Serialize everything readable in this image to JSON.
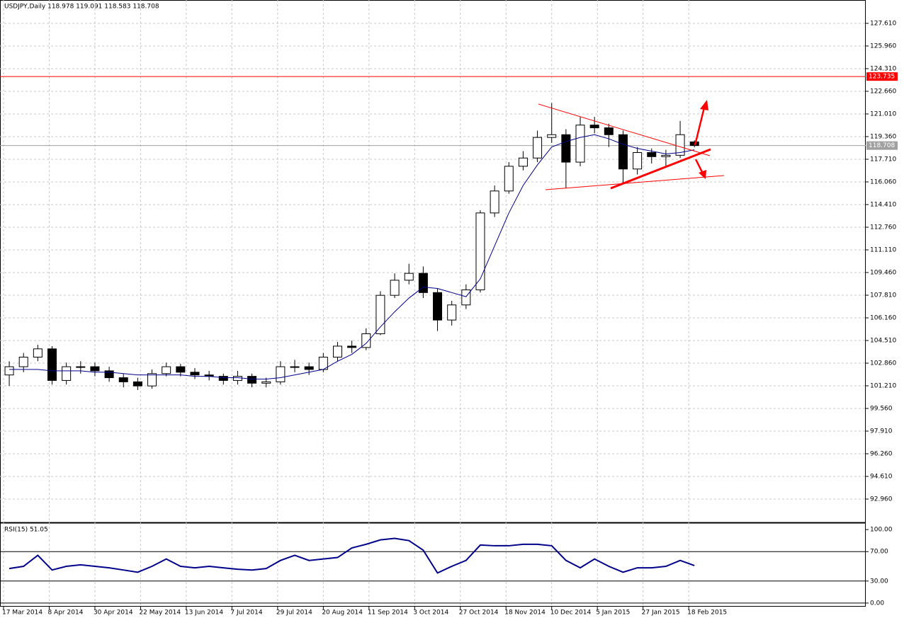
{
  "chart_data": {
    "type": "candlestick",
    "title": "USDJPY,Daily  118.978 119.091 118.583 118.708",
    "x": [
      2,
      7,
      12,
      17,
      22,
      27,
      32,
      37,
      42,
      47,
      52,
      57,
      62,
      67,
      72,
      77,
      82,
      87,
      92,
      97,
      102,
      107,
      112,
      117,
      122,
      127,
      132,
      137,
      142,
      147,
      152,
      157,
      162,
      167,
      172,
      177,
      182,
      187,
      192,
      197,
      202,
      207,
      212,
      217,
      222,
      227,
      232,
      237,
      242
    ],
    "open": [
      102.0,
      102.6,
      103.3,
      103.9,
      101.6,
      102.6,
      102.6,
      102.3,
      101.8,
      101.5,
      101.2,
      102.1,
      102.6,
      102.2,
      102.0,
      101.9,
      101.6,
      101.9,
      101.4,
      101.5,
      102.6,
      102.6,
      102.4,
      103.3,
      104.1,
      104.0,
      105.0,
      107.8,
      108.9,
      109.4,
      108.0,
      106.0,
      107.1,
      108.2,
      113.8,
      115.4,
      117.2,
      117.8,
      119.3,
      119.5,
      117.5,
      120.2,
      120.0,
      119.5,
      117.0,
      118.2,
      117.9,
      118.0,
      118.978
    ],
    "high": [
      103.0,
      103.6,
      104.2,
      104.1,
      102.9,
      103.0,
      102.9,
      102.6,
      102.1,
      101.8,
      102.4,
      102.9,
      102.8,
      102.5,
      102.3,
      102.1,
      102.3,
      102.1,
      101.8,
      103.0,
      103.1,
      102.9,
      103.6,
      104.4,
      104.5,
      105.4,
      108.1,
      109.4,
      110.1,
      109.9,
      108.3,
      107.4,
      108.6,
      114.0,
      115.8,
      117.5,
      118.3,
      119.8,
      121.8,
      119.9,
      120.8,
      120.8,
      120.3,
      119.8,
      118.6,
      118.5,
      118.4,
      120.5,
      119.091
    ],
    "low": [
      101.2,
      102.2,
      103.0,
      101.3,
      101.3,
      102.1,
      101.9,
      101.5,
      101.1,
      100.9,
      101.0,
      101.9,
      101.9,
      101.7,
      101.6,
      101.3,
      101.3,
      101.1,
      101.1,
      101.3,
      102.2,
      102.0,
      102.2,
      103.0,
      103.6,
      103.8,
      104.9,
      107.6,
      108.6,
      107.6,
      105.2,
      105.6,
      106.8,
      108.0,
      113.5,
      115.2,
      116.9,
      117.5,
      118.9,
      115.6,
      117.2,
      119.6,
      118.6,
      116.0,
      116.6,
      117.4,
      117.2,
      117.8,
      118.583
    ],
    "close": [
      102.6,
      103.3,
      103.9,
      101.6,
      102.6,
      102.6,
      102.3,
      101.8,
      101.5,
      101.2,
      102.1,
      102.6,
      102.2,
      102.0,
      101.9,
      101.6,
      101.9,
      101.4,
      101.5,
      102.6,
      102.6,
      102.4,
      103.3,
      104.1,
      104.0,
      105.0,
      107.8,
      108.9,
      109.4,
      108.0,
      106.0,
      107.1,
      108.2,
      113.8,
      115.4,
      117.2,
      117.8,
      119.3,
      119.5,
      117.5,
      120.2,
      120.0,
      119.5,
      117.0,
      118.2,
      117.9,
      118.0,
      119.5,
      118.708
    ],
    "ma": {
      "color": "#00008b",
      "values": [
        102.4,
        102.4,
        102.4,
        102.3,
        102.3,
        102.3,
        102.2,
        102.2,
        102.1,
        102.0,
        102.0,
        102.0,
        102.0,
        101.9,
        101.9,
        101.8,
        101.8,
        101.7,
        101.7,
        101.8,
        102.0,
        102.2,
        102.4,
        103.0,
        103.5,
        104.3,
        105.5,
        106.6,
        107.6,
        108.4,
        108.3,
        108.0,
        107.7,
        109.0,
        111.4,
        113.8,
        115.8,
        117.3,
        118.6,
        119.0,
        119.3,
        119.5,
        119.2,
        118.8,
        118.5,
        118.3,
        118.1,
        118.2,
        118.4
      ]
    },
    "xlim": [
      0,
      302
    ],
    "xticks": [
      {
        "value": 0,
        "label": "17 Mar 2014"
      },
      {
        "value": 16,
        "label": "8 Apr 2014"
      },
      {
        "value": 32,
        "label": "30 Apr 2014"
      },
      {
        "value": 48,
        "label": "22 May 2014"
      },
      {
        "value": 64,
        "label": "13 Jun 2014"
      },
      {
        "value": 80,
        "label": "7 Jul 2014"
      },
      {
        "value": 96,
        "label": "29 Jul 2014"
      },
      {
        "value": 112,
        "label": "20 Aug 2014"
      },
      {
        "value": 128,
        "label": "11 Sep 2014"
      },
      {
        "value": 144,
        "label": "3 Oct 2014"
      },
      {
        "value": 160,
        "label": "27 Oct 2014"
      },
      {
        "value": 176,
        "label": "18 Nov 2014"
      },
      {
        "value": 192,
        "label": "10 Dec 2014"
      },
      {
        "value": 208,
        "label": "5 Jan 2015"
      },
      {
        "value": 224,
        "label": "27 Jan 2015"
      },
      {
        "value": 240,
        "label": "18 Feb 2015"
      }
    ],
    "ylim": [
      91.31,
      129.31
    ],
    "yticks": [
      {
        "value": 127.61,
        "label": "127.610"
      },
      {
        "value": 125.96,
        "label": "125.960"
      },
      {
        "value": 124.31,
        "label": "124.310"
      },
      {
        "value": 122.66,
        "label": "122.660"
      },
      {
        "value": 121.01,
        "label": "121.010"
      },
      {
        "value": 119.36,
        "label": "119.360"
      },
      {
        "value": 117.71,
        "label": "117.710"
      },
      {
        "value": 116.06,
        "label": "116.060"
      },
      {
        "value": 114.41,
        "label": "114.410"
      },
      {
        "value": 112.76,
        "label": "112.760"
      },
      {
        "value": 111.11,
        "label": "111.110"
      },
      {
        "value": 109.46,
        "label": "109.460"
      },
      {
        "value": 107.81,
        "label": "107.810"
      },
      {
        "value": 106.16,
        "label": "106.160"
      },
      {
        "value": 104.51,
        "label": "104.510"
      },
      {
        "value": 102.86,
        "label": "102.860"
      },
      {
        "value": 101.21,
        "label": "101.210"
      },
      {
        "value": 99.56,
        "label": "99.560"
      },
      {
        "value": 97.91,
        "label": "97.910"
      },
      {
        "value": 96.26,
        "label": "96.260"
      },
      {
        "value": 94.61,
        "label": "94.610"
      },
      {
        "value": 92.96,
        "label": "92.960"
      }
    ],
    "levels": [
      {
        "value": 123.735,
        "color": "#ff0000"
      },
      {
        "value": 118.708,
        "color": "#a0a0a0"
      }
    ],
    "grid": true,
    "rsi": {
      "label": "RSI(15) 51.05",
      "color": "#00008b",
      "values": [
        47,
        50,
        65,
        45,
        50,
        52,
        50,
        48,
        45,
        42,
        50,
        60,
        50,
        48,
        50,
        48,
        46,
        45,
        47,
        58,
        65,
        58,
        60,
        62,
        75,
        80,
        86,
        88,
        85,
        72,
        41,
        50,
        58,
        79,
        78,
        78,
        80,
        80,
        78,
        58,
        48,
        60,
        50,
        42,
        48,
        48,
        50,
        58,
        51.05
      ],
      "ylim": [
        -4.9,
        107.8
      ],
      "yticks": [
        {
          "value": 100,
          "label": "100.00"
        },
        {
          "value": 70,
          "label": "70.00"
        },
        {
          "value": 30,
          "label": "30.00"
        },
        {
          "value": 0,
          "label": "0.00"
        }
      ]
    }
  }
}
